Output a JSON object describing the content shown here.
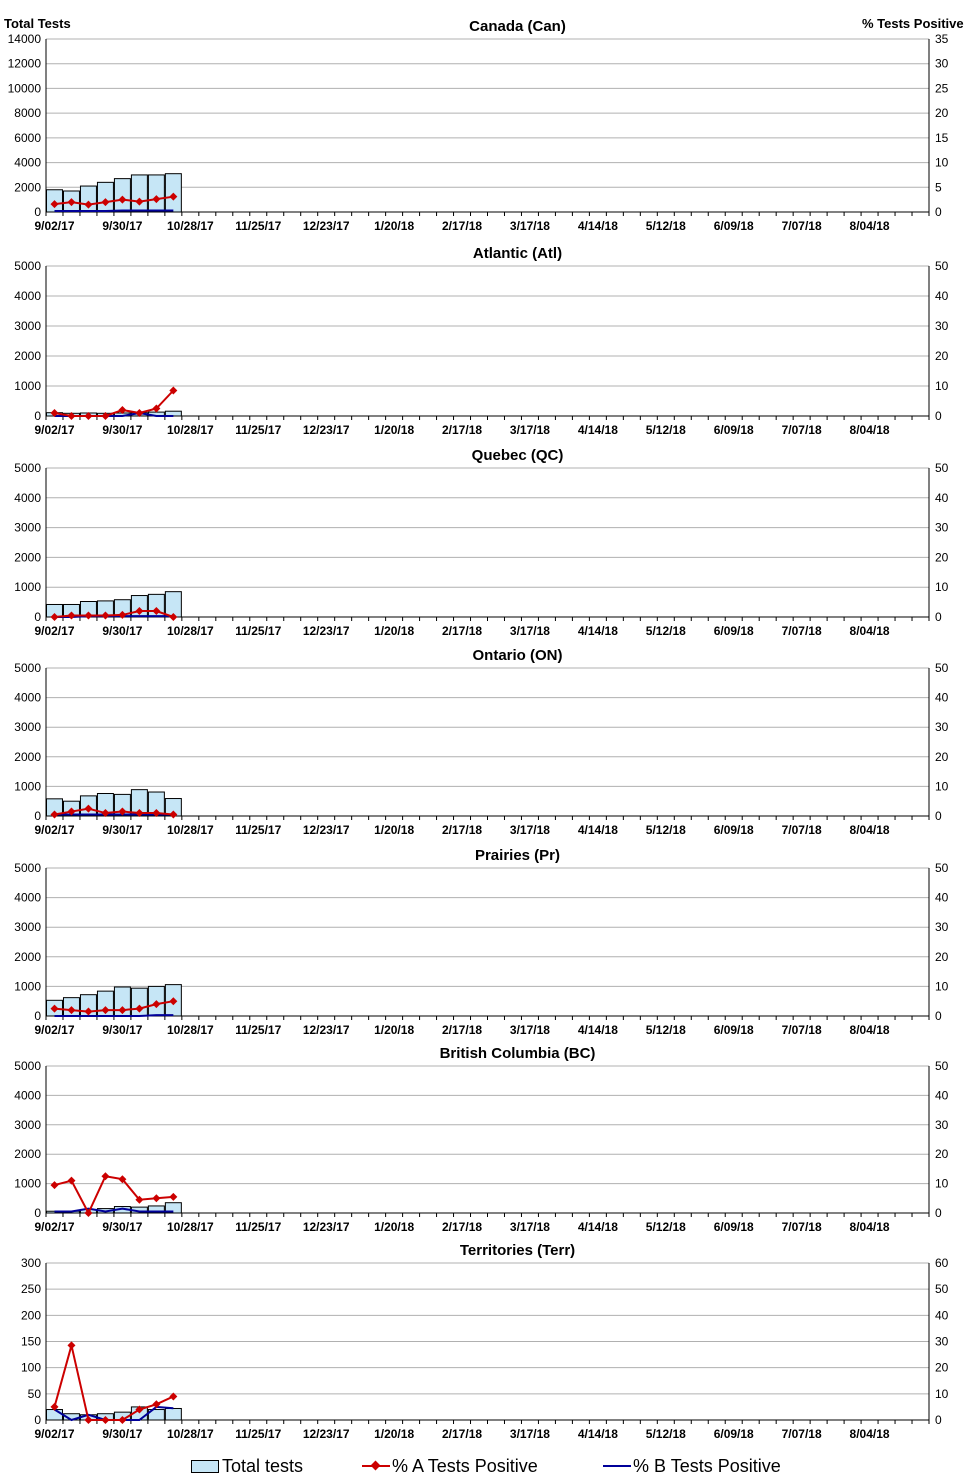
{
  "header": {
    "left_axis_title": "Total Tests",
    "right_axis_title": "% Tests Positive"
  },
  "legend": {
    "total": "Total tests",
    "a": "% A Tests Positive",
    "b": "% B Tests Positive"
  },
  "colors": {
    "bar_fill": "#c6e6f6",
    "bar_stroke": "#000000",
    "a_line": "#cc0000",
    "b_line": "#000099",
    "grid": "#b0b0b0"
  },
  "chart_data": [
    {
      "type": "bar+line",
      "title": "Canada (Can)",
      "x": [
        "9/02/17",
        "9/09/17",
        "9/16/17",
        "9/23/17",
        "9/30/17",
        "10/07/17",
        "10/14/17",
        "10/21/17"
      ],
      "xticks": [
        "9/02/17",
        "9/30/17",
        "10/28/17",
        "11/25/17",
        "12/23/17",
        "1/20/18",
        "2/17/18",
        "3/17/18",
        "4/14/18",
        "5/12/18",
        "6/09/18",
        "7/07/18",
        "8/04/18"
      ],
      "n_weeks": 52,
      "ylim_left": [
        0,
        14000
      ],
      "yticks_left": [
        0,
        2000,
        4000,
        6000,
        8000,
        10000,
        12000,
        14000
      ],
      "ylim_right": [
        0,
        35
      ],
      "yticks_right": [
        0,
        5,
        10,
        15,
        20,
        25,
        30,
        35
      ],
      "series": [
        {
          "name": "Total tests",
          "axis": "left",
          "values": [
            1800,
            1700,
            2100,
            2400,
            2700,
            3000,
            3000,
            3100
          ]
        },
        {
          "name": "% A Tests Positive",
          "axis": "right",
          "values": [
            1.6,
            2.0,
            1.5,
            2.0,
            2.5,
            2.1,
            2.6,
            3.1
          ]
        },
        {
          "name": "% B Tests Positive",
          "axis": "right",
          "values": [
            0.2,
            0.2,
            0.2,
            0.2,
            0.3,
            0.3,
            0.3,
            0.3
          ]
        }
      ]
    },
    {
      "type": "bar+line",
      "title": "Atlantic (Atl)",
      "x": [
        "9/02/17",
        "9/09/17",
        "9/16/17",
        "9/23/17",
        "9/30/17",
        "10/07/17",
        "10/14/17",
        "10/21/17"
      ],
      "xticks": [
        "9/02/17",
        "9/30/17",
        "10/28/17",
        "11/25/17",
        "12/23/17",
        "1/20/18",
        "2/17/18",
        "3/17/18",
        "4/14/18",
        "5/12/18",
        "6/09/18",
        "7/07/18",
        "8/04/18"
      ],
      "n_weeks": 52,
      "ylim_left": [
        0,
        5000
      ],
      "yticks_left": [
        0,
        1000,
        2000,
        3000,
        4000,
        5000
      ],
      "ylim_right": [
        0,
        50
      ],
      "yticks_right": [
        0,
        10,
        20,
        30,
        40,
        50
      ],
      "series": [
        {
          "name": "Total tests",
          "axis": "left",
          "values": [
            110,
            90,
            100,
            90,
            100,
            110,
            130,
            160
          ]
        },
        {
          "name": "% A Tests Positive",
          "axis": "right",
          "values": [
            1.0,
            0.0,
            0.0,
            0.0,
            2.0,
            1.0,
            2.5,
            8.5
          ]
        },
        {
          "name": "% B Tests Positive",
          "axis": "right",
          "values": [
            0.0,
            0.0,
            0.0,
            0.0,
            0.0,
            1.0,
            0.0,
            0.0
          ]
        }
      ]
    },
    {
      "type": "bar+line",
      "title": "Quebec (QC)",
      "x": [
        "9/02/17",
        "9/09/17",
        "9/16/17",
        "9/23/17",
        "9/30/17",
        "10/07/17",
        "10/14/17",
        "10/21/17"
      ],
      "xticks": [
        "9/02/17",
        "9/30/17",
        "10/28/17",
        "11/25/17",
        "12/23/17",
        "1/20/18",
        "2/17/18",
        "3/17/18",
        "4/14/18",
        "5/12/18",
        "6/09/18",
        "7/07/18",
        "8/04/18"
      ],
      "n_weeks": 52,
      "ylim_left": [
        0,
        5000
      ],
      "yticks_left": [
        0,
        1000,
        2000,
        3000,
        4000,
        5000
      ],
      "ylim_right": [
        0,
        50
      ],
      "yticks_right": [
        0,
        10,
        20,
        30,
        40,
        50
      ],
      "series": [
        {
          "name": "Total tests",
          "axis": "left",
          "values": [
            420,
            420,
            520,
            540,
            580,
            720,
            760,
            850
          ]
        },
        {
          "name": "% A Tests Positive",
          "axis": "right",
          "values": [
            0.0,
            0.5,
            0.5,
            0.5,
            0.7,
            2.0,
            2.0,
            0.0
          ]
        },
        {
          "name": "% B Tests Positive",
          "axis": "right",
          "values": [
            0.0,
            0.0,
            0.3,
            0.3,
            0.3,
            0.3,
            0.3,
            0.3
          ]
        }
      ]
    },
    {
      "type": "bar+line",
      "title": "Ontario (ON)",
      "x": [
        "9/02/17",
        "9/09/17",
        "9/16/17",
        "9/23/17",
        "9/30/17",
        "10/07/17",
        "10/14/17",
        "10/21/17"
      ],
      "xticks": [
        "9/02/17",
        "9/30/17",
        "10/28/17",
        "11/25/17",
        "12/23/17",
        "1/20/18",
        "2/17/18",
        "3/17/18",
        "4/14/18",
        "5/12/18",
        "6/09/18",
        "7/07/18",
        "8/04/18"
      ],
      "n_weeks": 52,
      "ylim_left": [
        0,
        5000
      ],
      "yticks_left": [
        0,
        1000,
        2000,
        3000,
        4000,
        5000
      ],
      "ylim_right": [
        0,
        50
      ],
      "yticks_right": [
        0,
        10,
        20,
        30,
        40,
        50
      ],
      "series": [
        {
          "name": "Total tests",
          "axis": "left",
          "values": [
            580,
            500,
            680,
            760,
            730,
            890,
            810,
            590
          ]
        },
        {
          "name": "% A Tests Positive",
          "axis": "right",
          "values": [
            0.5,
            1.5,
            2.5,
            1.0,
            1.5,
            1.0,
            1.0,
            0.5
          ]
        },
        {
          "name": "% B Tests Positive",
          "axis": "right",
          "values": [
            0.5,
            0.5,
            0.5,
            0.5,
            0.5,
            0.5,
            0.5,
            0.5
          ]
        }
      ]
    },
    {
      "type": "bar+line",
      "title": "Prairies (Pr)",
      "x": [
        "9/02/17",
        "9/09/17",
        "9/16/17",
        "9/23/17",
        "9/30/17",
        "10/07/17",
        "10/14/17",
        "10/21/17"
      ],
      "xticks": [
        "9/02/17",
        "9/30/17",
        "10/28/17",
        "11/25/17",
        "12/23/17",
        "1/20/18",
        "2/17/18",
        "3/17/18",
        "4/14/18",
        "5/12/18",
        "6/09/18",
        "7/07/18",
        "8/04/18"
      ],
      "n_weeks": 52,
      "ylim_left": [
        0,
        5000
      ],
      "yticks_left": [
        0,
        1000,
        2000,
        3000,
        4000,
        5000
      ],
      "ylim_right": [
        0,
        50
      ],
      "yticks_right": [
        0,
        10,
        20,
        30,
        40,
        50
      ],
      "series": [
        {
          "name": "Total tests",
          "axis": "left",
          "values": [
            530,
            620,
            720,
            840,
            980,
            940,
            1000,
            1060
          ]
        },
        {
          "name": "% A Tests Positive",
          "axis": "right",
          "values": [
            2.5,
            2.0,
            1.5,
            2.0,
            2.0,
            2.5,
            4.0,
            5.0
          ]
        },
        {
          "name": "% B Tests Positive",
          "axis": "right",
          "values": [
            0.0,
            0.0,
            0.0,
            0.0,
            0.0,
            0.0,
            0.3,
            0.3
          ]
        }
      ]
    },
    {
      "type": "bar+line",
      "title": "British Columbia (BC)",
      "x": [
        "9/02/17",
        "9/09/17",
        "9/16/17",
        "9/23/17",
        "9/30/17",
        "10/07/17",
        "10/14/17",
        "10/21/17"
      ],
      "xticks": [
        "9/02/17",
        "9/30/17",
        "10/28/17",
        "11/25/17",
        "12/23/17",
        "1/20/18",
        "2/17/18",
        "3/17/18",
        "4/14/18",
        "5/12/18",
        "6/09/18",
        "7/07/18",
        "8/04/18"
      ],
      "n_weeks": 52,
      "ylim_left": [
        0,
        5000
      ],
      "yticks_left": [
        0,
        1000,
        2000,
        3000,
        4000,
        5000
      ],
      "ylim_right": [
        0,
        50
      ],
      "yticks_right": [
        0,
        10,
        20,
        30,
        40,
        50
      ],
      "series": [
        {
          "name": "Total tests",
          "axis": "left",
          "values": [
            60,
            60,
            120,
            150,
            220,
            200,
            240,
            350
          ]
        },
        {
          "name": "% A Tests Positive",
          "axis": "right",
          "values": [
            9.5,
            11.0,
            0.0,
            12.5,
            11.5,
            4.5,
            5.0,
            5.5
          ]
        },
        {
          "name": "% B Tests Positive",
          "axis": "right",
          "values": [
            0.5,
            0.5,
            1.5,
            0.5,
            1.5,
            0.5,
            0.5,
            0.5
          ]
        }
      ]
    },
    {
      "type": "bar+line",
      "title": "Territories (Terr)",
      "x": [
        "9/02/17",
        "9/09/17",
        "9/16/17",
        "9/23/17",
        "9/30/17",
        "10/07/17",
        "10/14/17",
        "10/21/17"
      ],
      "xticks": [
        "9/02/17",
        "9/30/17",
        "10/28/17",
        "11/25/17",
        "12/23/17",
        "1/20/18",
        "2/17/18",
        "3/17/18",
        "4/14/18",
        "5/12/18",
        "6/09/18",
        "7/07/18",
        "8/04/18"
      ],
      "n_weeks": 52,
      "ylim_left": [
        0,
        300
      ],
      "yticks_left": [
        0,
        50,
        100,
        150,
        200,
        250,
        300
      ],
      "ylim_right": [
        0,
        60
      ],
      "yticks_right": [
        0,
        10,
        20,
        30,
        40,
        50,
        60
      ],
      "series": [
        {
          "name": "Total tests",
          "axis": "left",
          "values": [
            20,
            12,
            10,
            12,
            15,
            25,
            20,
            22
          ]
        },
        {
          "name": "% A Tests Positive",
          "axis": "right",
          "values": [
            5.0,
            28.5,
            0.0,
            0.0,
            0.0,
            4.0,
            6.0,
            9.0
          ]
        },
        {
          "name": "% B Tests Positive",
          "axis": "right",
          "values": [
            4.0,
            0.0,
            2.0,
            0.0,
            0.0,
            0.0,
            5.0,
            4.5
          ]
        }
      ]
    }
  ]
}
